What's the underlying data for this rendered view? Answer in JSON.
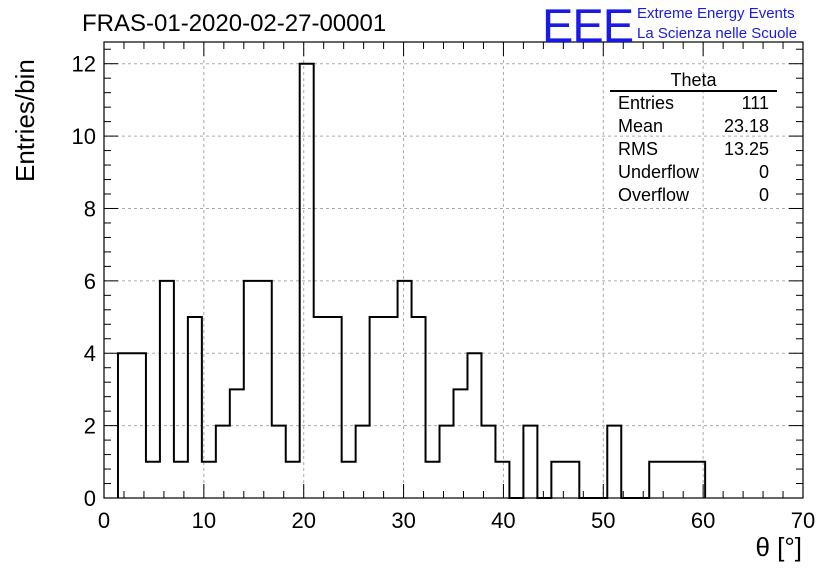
{
  "title": "FRAS-01-2020-02-27-00001",
  "logo": {
    "mark": "EEE",
    "line1": "Extreme Energy Events",
    "line2": "La Scienza nelle Scuole",
    "color": "#1a1ae6"
  },
  "stats": {
    "name": "Theta",
    "rows": [
      {
        "label": "Entries",
        "value": "111"
      },
      {
        "label": "Mean",
        "value": "23.18"
      },
      {
        "label": "RMS",
        "value": "13.25"
      },
      {
        "label": "Underflow",
        "value": "0"
      },
      {
        "label": "Overflow",
        "value": "0"
      }
    ]
  },
  "chart_data": {
    "type": "bar",
    "style": "histogram-step",
    "xlabel": "θ [°]",
    "ylabel": "Entries/bin",
    "xlim": [
      0,
      70
    ],
    "ylim": [
      0,
      12.6
    ],
    "xticks": [
      0,
      10,
      20,
      30,
      40,
      50,
      60,
      70
    ],
    "yticks": [
      0,
      2,
      4,
      6,
      8,
      10,
      12
    ],
    "grid": true,
    "bin_width": 1.4,
    "bin_start": 1.4,
    "values": [
      4,
      4,
      1,
      6,
      1,
      5,
      1,
      2,
      3,
      6,
      6,
      2,
      1,
      12,
      5,
      5,
      1,
      2,
      5,
      5,
      6,
      5,
      1,
      2,
      3,
      4,
      2,
      1,
      0,
      2,
      0,
      1,
      1,
      0,
      0,
      2,
      0,
      0,
      1,
      1,
      1,
      1
    ],
    "line_color": "#000000"
  }
}
